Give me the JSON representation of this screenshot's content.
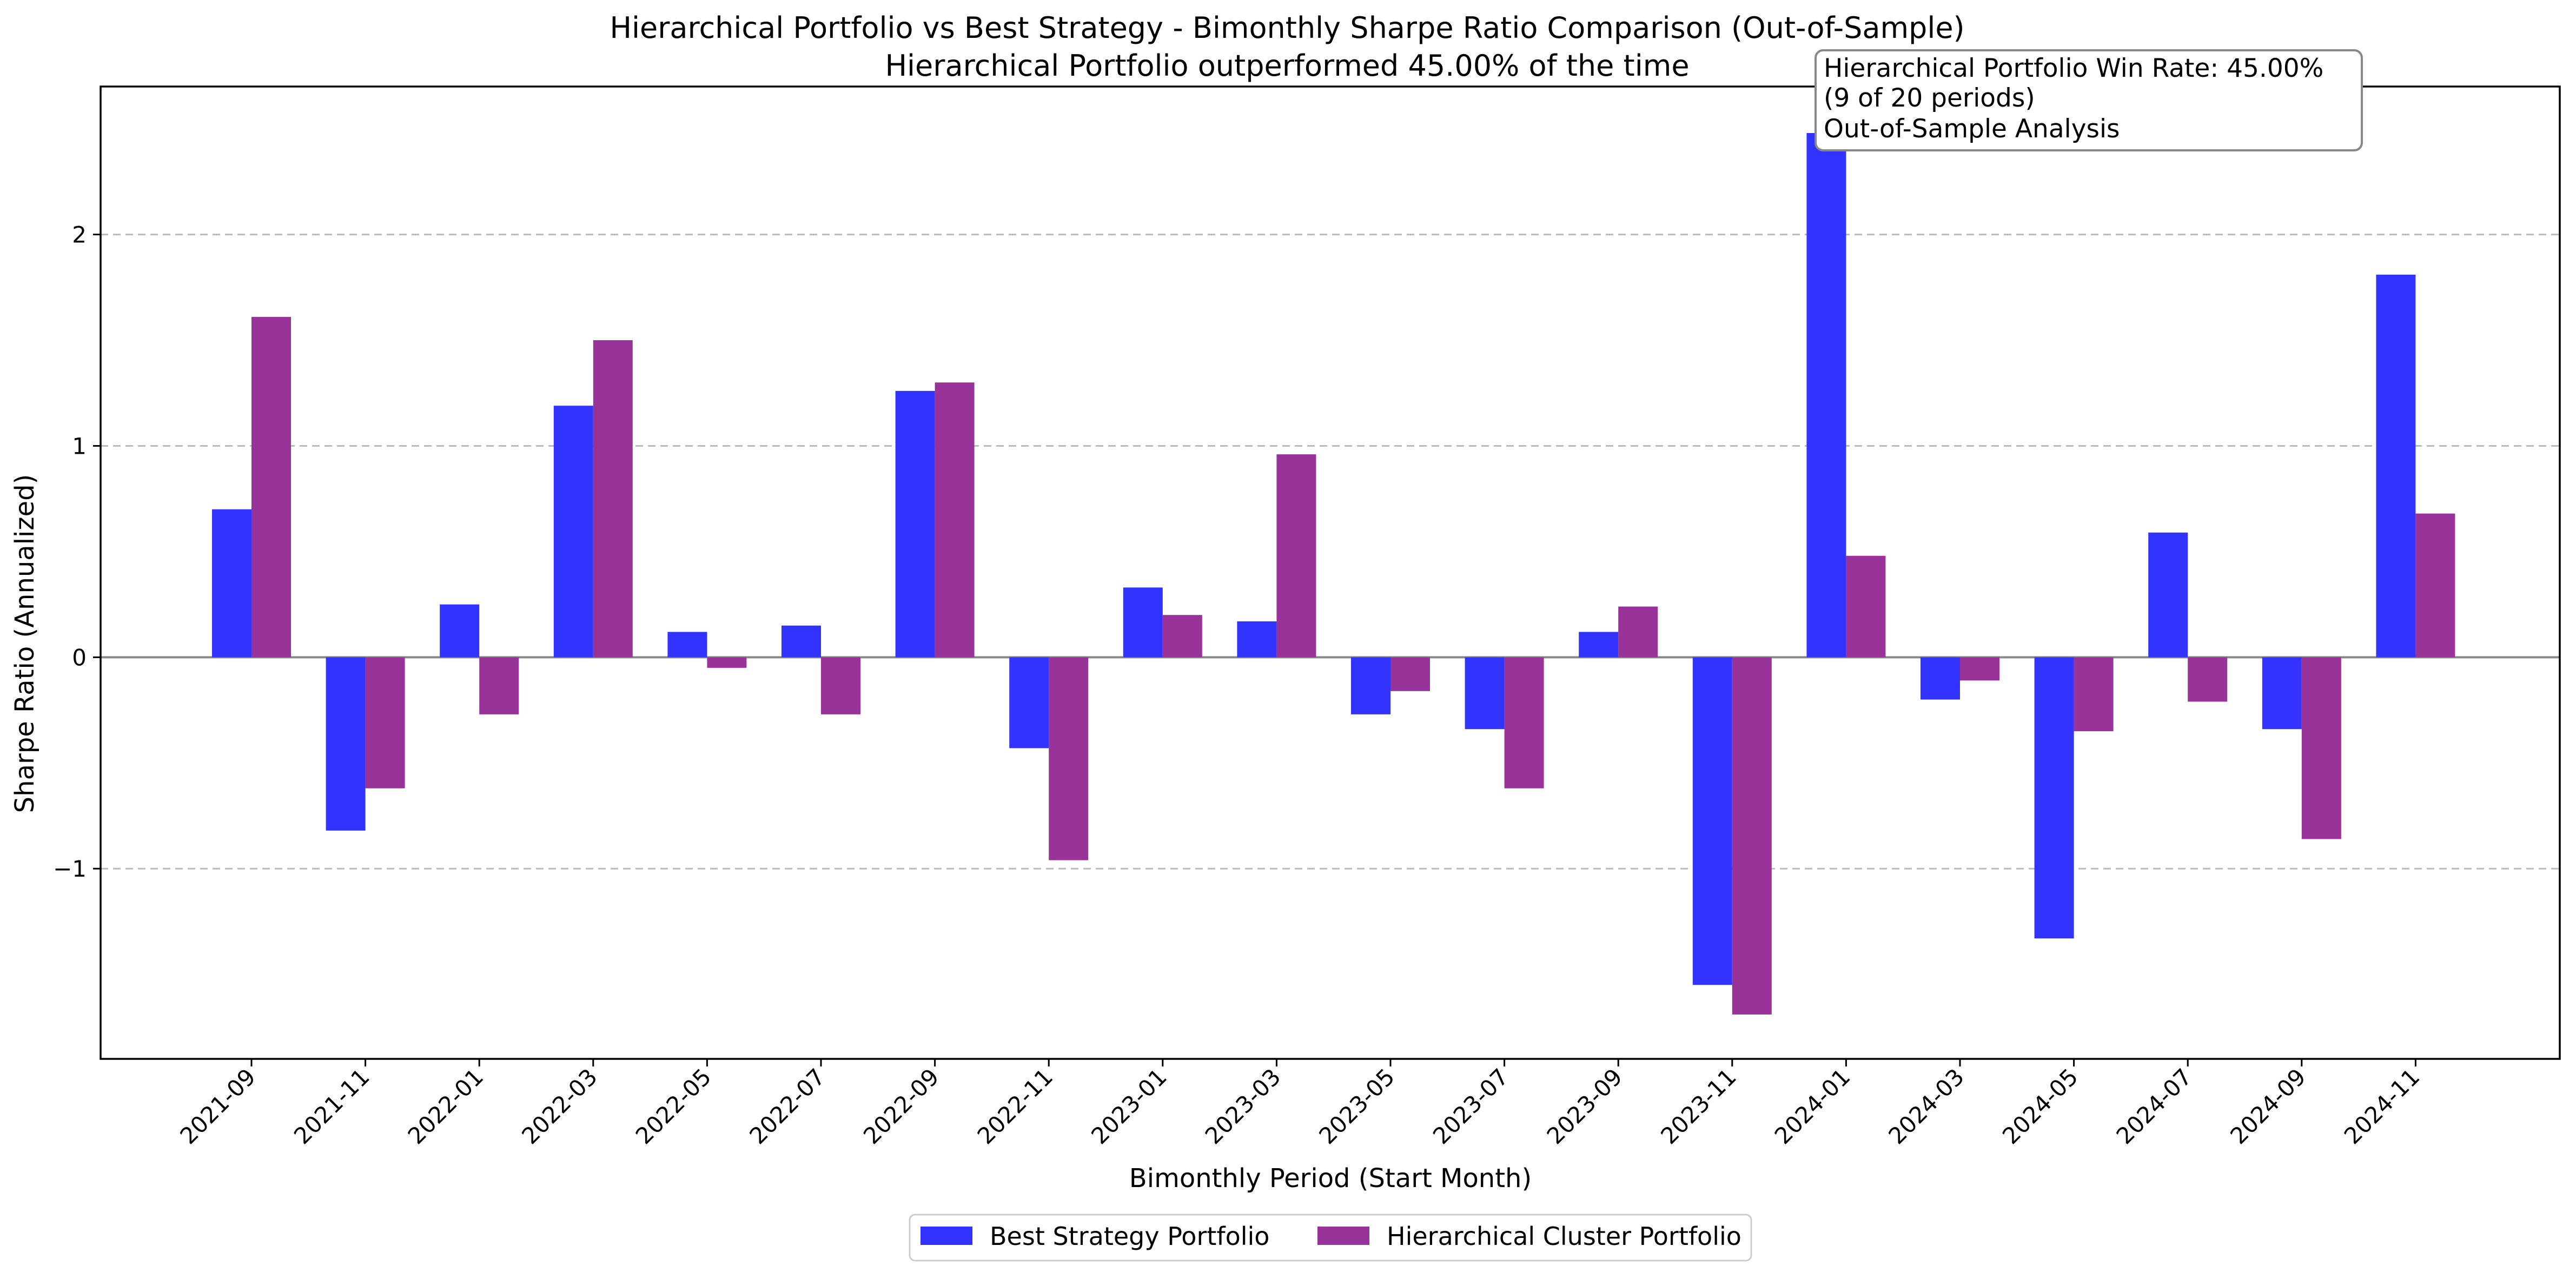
{
  "chart_data": {
    "type": "bar",
    "title": "Hierarchical Portfolio vs Best Strategy - Bimonthly Sharpe Ratio Comparison (Out-of-Sample)",
    "subtitle": "Hierarchical Portfolio outperformed 45.00% of the time",
    "xlabel": "Bimonthly Period (Start Month)",
    "ylabel": "Sharpe Ratio (Annualized)",
    "ylim": [
      -1.9,
      2.7
    ],
    "yticks": [
      -1,
      0,
      1,
      2
    ],
    "ytick_labels": [
      "−1",
      "0",
      "1",
      "2"
    ],
    "grid": true,
    "legend_position": "bottom-center",
    "categories": [
      "2021-09",
      "2021-11",
      "2022-01",
      "2022-03",
      "2022-05",
      "2022-07",
      "2022-09",
      "2022-11",
      "2023-01",
      "2023-03",
      "2023-05",
      "2023-07",
      "2023-09",
      "2023-11",
      "2024-01",
      "2024-03",
      "2024-05",
      "2024-07",
      "2024-09",
      "2024-11"
    ],
    "series": [
      {
        "name": "Best Strategy Portfolio",
        "color": "#3333ff",
        "values": [
          0.7,
          -0.82,
          0.25,
          1.19,
          0.12,
          0.15,
          1.26,
          -0.43,
          0.33,
          0.17,
          -0.27,
          -0.34,
          0.12,
          -1.55,
          2.48,
          -0.2,
          -1.33,
          0.59,
          -0.34,
          1.81
        ]
      },
      {
        "name": "Hierarchical Cluster Portfolio",
        "color": "#993399",
        "values": [
          1.61,
          -0.62,
          -0.27,
          1.5,
          -0.05,
          -0.27,
          1.3,
          -0.96,
          0.2,
          0.96,
          -0.16,
          -0.62,
          0.24,
          -1.69,
          0.48,
          -0.11,
          -0.35,
          -0.21,
          -0.86,
          0.68
        ]
      }
    ],
    "annotation": {
      "lines": [
        "Hierarchical Portfolio Win Rate: 45.00%",
        "(9 of 20 periods)",
        "Out-of-Sample Analysis"
      ]
    }
  }
}
